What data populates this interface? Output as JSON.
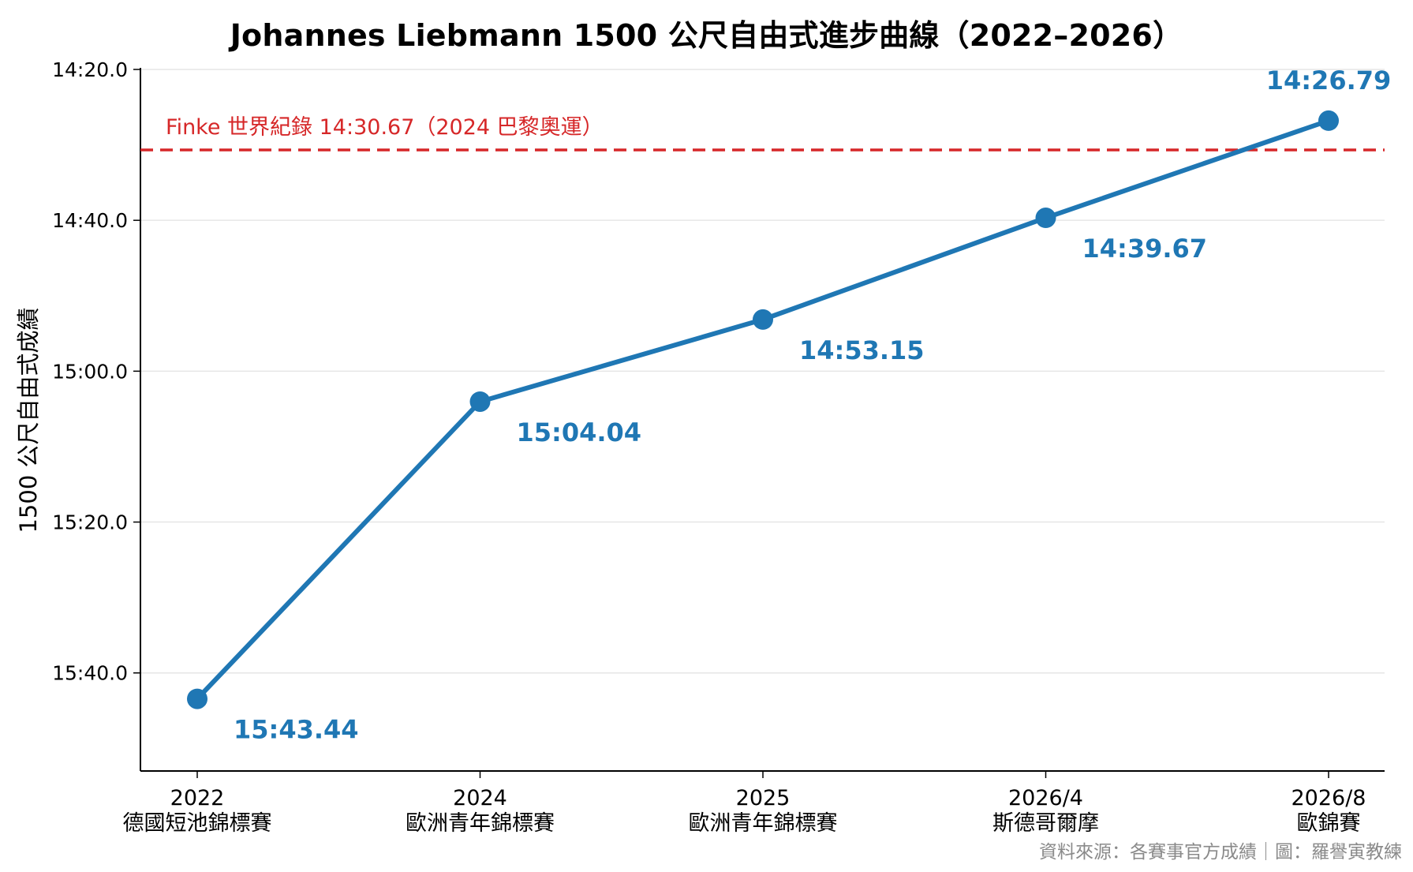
{
  "title": "Johannes Liebmann 1500 公尺自由式進步曲線（2022–2026）",
  "source": "資料來源：各賽事官方成績｜圖：羅譽寅教練",
  "colors": {
    "series": "#1f77b4",
    "record": "#d62728",
    "axis": "#000000",
    "grid": "#e6e6e6",
    "source": "#8a8a8a"
  },
  "chart_data": {
    "type": "line",
    "title": "Johannes Liebmann 1500 公尺自由式進步曲線（2022–2026）",
    "ylabel": "1500 公尺自由式成績",
    "xlabel": "",
    "y_axis_inverted": true,
    "ylim_seconds": [
      953,
      860
    ],
    "yticks": [
      {
        "label": "14:20.0",
        "seconds": 860
      },
      {
        "label": "14:40.0",
        "seconds": 880
      },
      {
        "label": "15:00.0",
        "seconds": 900
      },
      {
        "label": "15:20.0",
        "seconds": 920
      },
      {
        "label": "15:40.0",
        "seconds": 940
      }
    ],
    "grid": "horizontal",
    "categories": [
      {
        "year": "2022",
        "event": "德國短池錦標賽"
      },
      {
        "year": "2024",
        "event": "歐洲青年錦標賽"
      },
      {
        "year": "2025",
        "event": "歐洲青年錦標賽"
      },
      {
        "year": "2026/4",
        "event": "斯德哥爾摩"
      },
      {
        "year": "2026/8",
        "event": "歐錦賽"
      }
    ],
    "series": [
      {
        "values_seconds": [
          943.44,
          904.04,
          893.15,
          879.67,
          866.79
        ],
        "labels": [
          "15:43.44",
          "15:04.04",
          "14:53.15",
          "14:39.67",
          "14:26.79"
        ]
      }
    ],
    "reference_line": {
      "label": "Finke 世界紀錄 14:30.67（2024 巴黎奧運）",
      "seconds": 870.67,
      "style": "dashed"
    }
  }
}
